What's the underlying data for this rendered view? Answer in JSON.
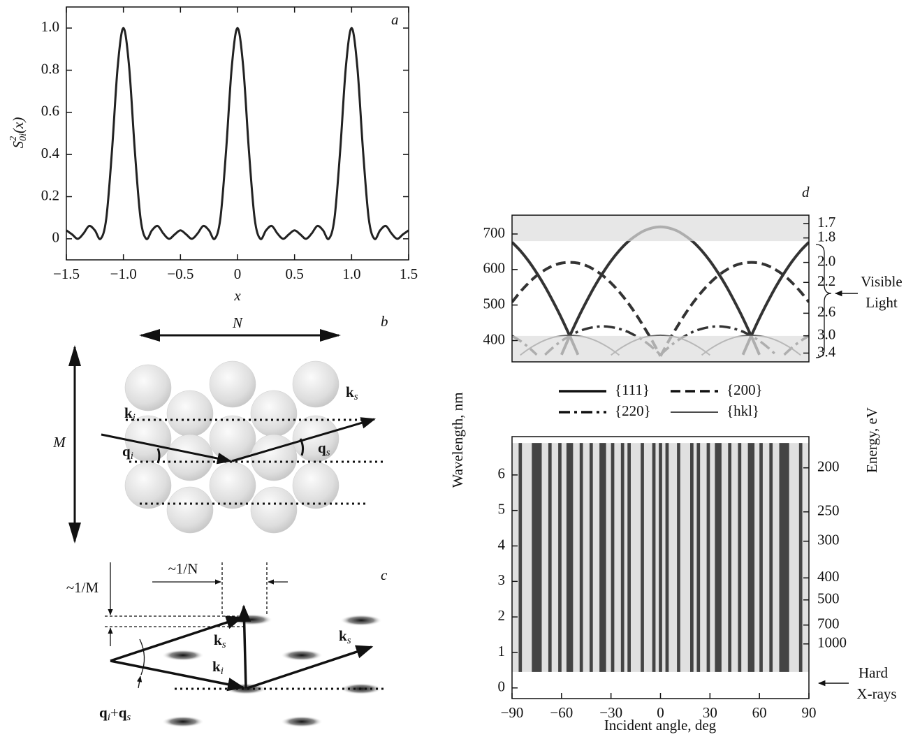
{
  "chart_data": [
    {
      "type": "line",
      "panel_label": "a",
      "xlabel": "x",
      "ylabel": {
        "symbol": "S",
        "sup": "2",
        "sub": "0i",
        "arg": "(x)"
      },
      "color": "#222",
      "x": [
        -1.5,
        -1.45,
        -1.4,
        -1.35,
        -1.3,
        -1.25,
        -1.2,
        -1.15,
        -1.1,
        -1.05,
        -1,
        -0.95,
        -0.9,
        -0.85,
        -0.8,
        -0.75,
        -0.7,
        -0.65,
        -0.6,
        -0.55,
        -0.5,
        -0.45,
        -0.4,
        -0.35,
        -0.3,
        -0.25,
        -0.2,
        -0.15,
        -0.1,
        -0.05,
        0,
        0.05,
        0.1,
        0.15,
        0.2,
        0.25,
        0.3,
        0.35,
        0.4,
        0.45,
        0.5,
        0.55,
        0.6,
        0.65,
        0.7,
        0.75,
        0.8,
        0.85,
        0.9,
        0.95,
        1,
        1.05,
        1.1,
        1.15,
        1.2,
        1.25,
        1.3,
        1.35,
        1.4,
        1.45,
        1.5
      ],
      "values": [
        0.04,
        0.021,
        0,
        0.025,
        0.061,
        0.04,
        0,
        0.097,
        0.419,
        0.817,
        1,
        0.817,
        0.419,
        0.097,
        0,
        0.04,
        0.061,
        0.025,
        0,
        0.021,
        0.04,
        0.021,
        0,
        0.025,
        0.061,
        0.04,
        0,
        0.097,
        0.419,
        0.817,
        1,
        0.817,
        0.419,
        0.097,
        0,
        0.04,
        0.061,
        0.025,
        0,
        0.021,
        0.04,
        0.021,
        0,
        0.025,
        0.061,
        0.04,
        0,
        0.097,
        0.419,
        0.817,
        1,
        0.817,
        0.419,
        0.097,
        0,
        0.04,
        0.061,
        0.025,
        0,
        0.021,
        0.04
      ],
      "xlim": [
        -1.5,
        1.5
      ],
      "ylim": [
        -0.1,
        1.1
      ],
      "xticks": [
        {
          "value": -1.5,
          "label": "−1.5"
        },
        {
          "value": -1,
          "label": "−1.0"
        },
        {
          "value": -0.5,
          "label": "−0.5"
        },
        0,
        0.5,
        {
          "value": 1,
          "label": "1.0"
        },
        1.5
      ],
      "yticks": [
        0,
        0.2,
        0.4,
        0.6,
        0.8,
        {
          "value": 1,
          "label": "1.0"
        }
      ]
    },
    {
      "type": "arcs",
      "panel_label": "d",
      "ylabel": "Wavelength, nm",
      "y2label": "Energy, eV",
      "xlim": [
        -90,
        90
      ],
      "ylim": [
        340,
        753
      ],
      "yticks": [
        400,
        500,
        600,
        700
      ],
      "y2ticks": [
        1.7,
        1.8,
        {
          "value": 2,
          "label": "2.0"
        },
        2.2,
        2.6,
        {
          "value": 3,
          "label": "3.0"
        },
        3.4
      ],
      "y2_scale": "reciprocal",
      "y2_constant": 1240,
      "bands": [
        [
          680,
          753
        ],
        [
          340,
          413
        ]
      ],
      "annotation": [
        "Visible",
        "Light"
      ],
      "series": [
        {
          "name": "{111}",
          "style": "solid",
          "width": 4,
          "color": "#333",
          "arcs": [
            {
              "x": [
                -90,
                -85,
                -80,
                -75,
                -70,
                -65,
                -60,
                -55,
                -50
              ],
              "values": [
                677,
                653,
                624,
                590,
                552,
                509,
                463,
                413,
                360
              ]
            },
            {
              "x": [
                -60,
                -55,
                -50,
                -45,
                -40,
                -35,
                -30,
                -25,
                -20,
                -15,
                -10,
                -5,
                0,
                5,
                10,
                15,
                20,
                25,
                30,
                35,
                40,
                45,
                50,
                55,
                60
              ],
              "values": [
                360,
                413,
                463,
                509,
                552,
                590,
                624,
                653,
                677,
                695,
                709,
                717,
                720,
                717,
                709,
                695,
                677,
                653,
                624,
                590,
                552,
                509,
                463,
                413,
                360
              ]
            },
            {
              "x": [
                50,
                55,
                60,
                65,
                70,
                75,
                80,
                85,
                90
              ],
              "values": [
                360,
                413,
                463,
                509,
                552,
                590,
                624,
                653,
                677
              ]
            }
          ]
        },
        {
          "name": "{200}",
          "style": "dashed",
          "width": 4,
          "color": "#333",
          "arcs": [
            {
              "x": [
                -90,
                -85,
                -80,
                -75,
                -70,
                -65,
                -60,
                -55,
                -50,
                -45,
                -40,
                -35,
                -30,
                -25,
                -20,
                -15,
                -10,
                -5,
                0
              ],
              "values": [
                508,
                537,
                562,
                583,
                599,
                611,
                618,
                620,
                618,
                611,
                599,
                583,
                562,
                537,
                508,
                475,
                438,
                399,
                356
              ]
            },
            {
              "x": [
                0,
                5,
                10,
                15,
                20,
                25,
                30,
                35,
                40,
                45,
                50,
                55,
                60,
                65,
                70,
                75,
                80,
                85,
                90
              ],
              "values": [
                356,
                399,
                438,
                475,
                508,
                537,
                562,
                583,
                599,
                611,
                618,
                620,
                618,
                611,
                599,
                583,
                562,
                537,
                508
              ]
            }
          ]
        },
        {
          "name": "{220}",
          "style": "dashdot",
          "width": 3.5,
          "color": "#333",
          "arcs": [
            {
              "x": [
                -90,
                -85,
                -80,
                -75
              ],
              "values": [
                413,
                399,
                381,
                360
              ]
            },
            {
              "x": [
                -70,
                -65,
                -60,
                -55,
                -50,
                -45,
                -40,
                -35,
                -30,
                -25,
                -20,
                -15,
                -10,
                -5,
                0
              ],
              "values": [
                360,
                381,
                399,
                413,
                425,
                433,
                438,
                440,
                438,
                433,
                425,
                413,
                399,
                381,
                360
              ]
            },
            {
              "x": [
                0,
                5,
                10,
                15,
                20,
                25,
                30,
                35,
                40,
                45,
                50,
                55,
                60,
                65,
                70
              ],
              "values": [
                360,
                381,
                399,
                413,
                425,
                433,
                438,
                440,
                438,
                433,
                425,
                413,
                399,
                381,
                360
              ]
            },
            {
              "x": [
                75,
                80,
                85,
                90
              ],
              "values": [
                360,
                381,
                399,
                413
              ]
            }
          ]
        },
        {
          "name": "{hkl}",
          "style": "solid",
          "width": 2,
          "color": "#555",
          "arcs": [
            {
              "x": [
                -85,
                -80,
                -75,
                -70,
                -65,
                -60,
                -55,
                -50,
                -45,
                -40,
                -35,
                -30,
                -25
              ],
              "values": [
                359,
                376,
                390,
                401,
                409,
                413,
                415,
                413,
                409,
                401,
                390,
                376,
                359
              ]
            },
            {
              "x": [
                -30,
                -25,
                -20,
                -15,
                -10,
                -5,
                0,
                5,
                10,
                15,
                20,
                25,
                30
              ],
              "values": [
                359,
                376,
                390,
                401,
                409,
                413,
                415,
                413,
                409,
                401,
                390,
                376,
                359
              ]
            },
            {
              "x": [
                25,
                30,
                35,
                40,
                45,
                50,
                55,
                60,
                65,
                70,
                75,
                80,
                85
              ],
              "values": [
                359,
                376,
                390,
                401,
                409,
                413,
                415,
                413,
                409,
                401,
                390,
                376,
                359
              ]
            }
          ]
        }
      ]
    },
    {
      "type": "strips",
      "xlabel": "Incident angle, deg",
      "xlim": [
        -90,
        90
      ],
      "ylim": [
        -0.3,
        7.08
      ],
      "xticks": [
        {
          "value": -90,
          "label": "−90"
        },
        {
          "value": -60,
          "label": "−60"
        },
        {
          "value": -30,
          "label": "−30"
        },
        0,
        30,
        60,
        90
      ],
      "yticks": [
        0,
        1,
        2,
        3,
        4,
        5,
        6
      ],
      "y2ticks": [
        200,
        250,
        300,
        400,
        500,
        700,
        1000
      ],
      "y2_scale": "reciprocal",
      "y2_constant": 1240,
      "bands": [
        [
          0.45,
          6.9
        ]
      ],
      "annotation": [
        "Hard",
        "X-rays"
      ],
      "color": "#444",
      "span": [
        0.45,
        6.9
      ],
      "strips": [
        [
          -86,
          -84
        ],
        [
          -78,
          -72
        ],
        [
          -68,
          -66
        ],
        [
          -62,
          -60
        ],
        [
          -57,
          -53
        ],
        [
          -49,
          -47
        ],
        [
          -43,
          -41
        ],
        [
          -37,
          -33
        ],
        [
          -30,
          -28
        ],
        [
          -24,
          -22
        ],
        [
          -20,
          -18
        ],
        [
          -12,
          -10
        ],
        [
          -5,
          -3
        ],
        [
          -1,
          1
        ],
        [
          3,
          5
        ],
        [
          10,
          12
        ],
        [
          18,
          20
        ],
        [
          22,
          24
        ],
        [
          28,
          30
        ],
        [
          33,
          37
        ],
        [
          41,
          43
        ],
        [
          47,
          49
        ],
        [
          53,
          57
        ],
        [
          60,
          62
        ],
        [
          66,
          68
        ],
        [
          72,
          78
        ],
        [
          84,
          86
        ]
      ]
    }
  ],
  "panel_b": {
    "label": "b",
    "n": "N",
    "m": "M",
    "k_i": {
      "symbol": "k",
      "index": "i"
    },
    "k_s": {
      "symbol": "k",
      "index": "s"
    },
    "q_i": {
      "symbol": "q",
      "index": "i"
    },
    "q_s": {
      "symbol": "q",
      "index": "s"
    }
  },
  "panel_c": {
    "label": "c",
    "inv_n": "~1/N",
    "inv_m": "~1/M",
    "k_s_1": {
      "symbol": "k",
      "index": "s"
    },
    "k_i": {
      "symbol": "k",
      "index": "i"
    },
    "k_s_2": {
      "symbol": "k",
      "index": "s"
    },
    "sum": {
      "a": {
        "symbol": "q",
        "index": "i"
      },
      "op": "+",
      "b": {
        "symbol": "q",
        "index": "s"
      }
    }
  }
}
